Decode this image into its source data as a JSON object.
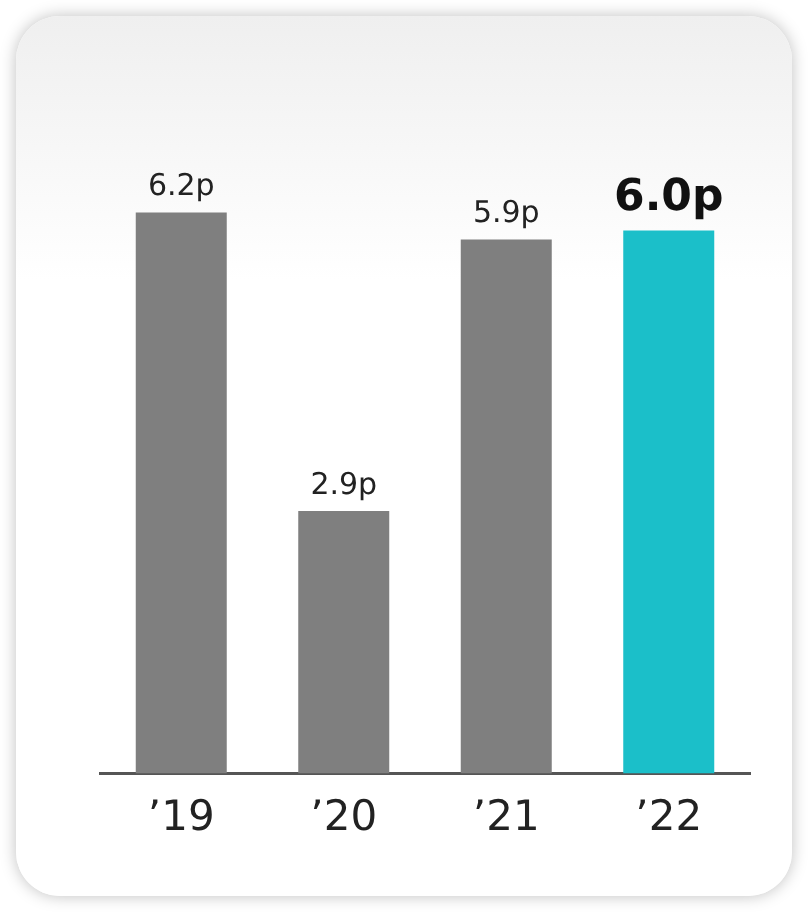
{
  "chart_data": {
    "type": "bar",
    "categories": [
      "’19",
      "’20",
      "’21",
      "’22"
    ],
    "values": [
      6.2,
      2.9,
      5.9,
      6.0
    ],
    "colors": [
      "#7f7f7f",
      "#7f7f7f",
      "#7f7f7f",
      "#1bbfc9"
    ],
    "value_labels": [
      "6.2p",
      "2.9p",
      "5.9p",
      "6.0p"
    ],
    "legend": false,
    "grid": false
  }
}
